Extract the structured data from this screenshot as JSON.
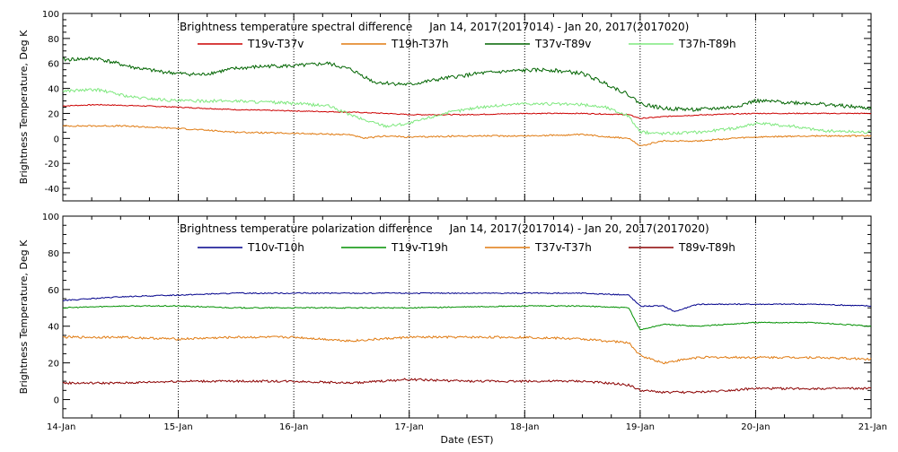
{
  "shared": {
    "xlabel": "Date (EST)",
    "x_ticks": [
      "14-Jan",
      "15-Jan",
      "16-Jan",
      "17-Jan",
      "18-Jan",
      "19-Jan",
      "20-Jan",
      "21-Jan"
    ],
    "xlim": [
      "14-Jan",
      "21-Jan"
    ],
    "grid": "dotted vertical lines at each day"
  },
  "chart_data": [
    {
      "type": "line",
      "title": "Brightness temperature spectral difference     Jan 14, 2017(2017014) - Jan 20, 2017(2017020)",
      "ylabel": "Brightness Temperature, Deg K",
      "ylim": [
        -50,
        100
      ],
      "y_ticks": [
        -40,
        -20,
        0,
        20,
        40,
        60,
        80,
        100
      ],
      "x_tick_labels_shown": false,
      "series": [
        {
          "name": "T19v-T37v",
          "color": "#cc0000",
          "noise": 0.4,
          "points": [
            [
              0,
              26
            ],
            [
              0.3,
              27
            ],
            [
              0.7,
              26
            ],
            [
              1,
              25
            ],
            [
              1.5,
              23
            ],
            [
              2,
              22
            ],
            [
              2.5,
              21
            ],
            [
              2.8,
              20
            ],
            [
              3,
              19
            ],
            [
              3.5,
              19
            ],
            [
              4,
              20
            ],
            [
              4.5,
              20
            ],
            [
              4.9,
              19
            ],
            [
              5,
              16
            ],
            [
              5.3,
              18
            ],
            [
              5.6,
              19
            ],
            [
              6,
              20
            ],
            [
              6.5,
              20
            ],
            [
              7,
              20
            ]
          ]
        },
        {
          "name": "T19h-T37h",
          "color": "#e07a10",
          "noise": 0.6,
          "points": [
            [
              0,
              10
            ],
            [
              0.5,
              10
            ],
            [
              1,
              8
            ],
            [
              1.5,
              5
            ],
            [
              2,
              4
            ],
            [
              2.5,
              3
            ],
            [
              2.6,
              0
            ],
            [
              2.8,
              2
            ],
            [
              3,
              1
            ],
            [
              3.5,
              2
            ],
            [
              4,
              2
            ],
            [
              4.5,
              3
            ],
            [
              4.9,
              0
            ],
            [
              5,
              -6
            ],
            [
              5.2,
              -2
            ],
            [
              5.5,
              -2
            ],
            [
              5.8,
              0
            ],
            [
              6,
              1
            ],
            [
              6.5,
              2
            ],
            [
              7,
              2
            ]
          ]
        },
        {
          "name": "T37v-T89v",
          "color": "#006400",
          "noise": 1.5,
          "points": [
            [
              0,
              63
            ],
            [
              0.3,
              64
            ],
            [
              0.6,
              57
            ],
            [
              0.8,
              54
            ],
            [
              1,
              52
            ],
            [
              1.2,
              51
            ],
            [
              1.5,
              56
            ],
            [
              1.8,
              58
            ],
            [
              2,
              58
            ],
            [
              2.3,
              60
            ],
            [
              2.5,
              55
            ],
            [
              2.7,
              45
            ],
            [
              3,
              43
            ],
            [
              3.3,
              48
            ],
            [
              3.6,
              52
            ],
            [
              3.9,
              54
            ],
            [
              4.2,
              55
            ],
            [
              4.5,
              52
            ],
            [
              4.7,
              44
            ],
            [
              4.9,
              35
            ],
            [
              5,
              28
            ],
            [
              5.2,
              24
            ],
            [
              5.5,
              23
            ],
            [
              5.8,
              25
            ],
            [
              6,
              30
            ],
            [
              6.5,
              28
            ],
            [
              7,
              24
            ]
          ]
        },
        {
          "name": "T37h-T89h",
          "color": "#7ee87e",
          "noise": 1.2,
          "points": [
            [
              0,
              38
            ],
            [
              0.3,
              39
            ],
            [
              0.6,
              33
            ],
            [
              1,
              30
            ],
            [
              1.5,
              30
            ],
            [
              2,
              28
            ],
            [
              2.3,
              26
            ],
            [
              2.6,
              15
            ],
            [
              2.8,
              10
            ],
            [
              3,
              12
            ],
            [
              3.3,
              20
            ],
            [
              3.6,
              25
            ],
            [
              4,
              28
            ],
            [
              4.5,
              27
            ],
            [
              4.7,
              25
            ],
            [
              4.9,
              18
            ],
            [
              5,
              5
            ],
            [
              5.2,
              4
            ],
            [
              5.5,
              5
            ],
            [
              5.8,
              8
            ],
            [
              6,
              12
            ],
            [
              6.3,
              10
            ],
            [
              6.6,
              6
            ],
            [
              7,
              5
            ]
          ]
        }
      ]
    },
    {
      "type": "line",
      "title": "Brightness temperature polarization difference     Jan 14, 2017(2017014) - Jan 20, 2017(2017020)",
      "ylabel": "Brightness Temperature, Deg K",
      "ylim": [
        -10,
        100
      ],
      "y_ticks": [
        0,
        20,
        40,
        60,
        80,
        100
      ],
      "x_tick_labels_shown": true,
      "series": [
        {
          "name": "T10v-T10h",
          "color": "#00008b",
          "noise": 0.3,
          "points": [
            [
              0,
              54
            ],
            [
              0.5,
              56
            ],
            [
              1,
              57
            ],
            [
              1.5,
              58
            ],
            [
              2,
              58
            ],
            [
              3,
              58
            ],
            [
              4,
              58
            ],
            [
              4.5,
              58
            ],
            [
              4.9,
              57
            ],
            [
              5,
              51
            ],
            [
              5.2,
              51
            ],
            [
              5.3,
              48
            ],
            [
              5.5,
              52
            ],
            [
              6,
              52
            ],
            [
              6.5,
              52
            ],
            [
              7,
              51
            ]
          ]
        },
        {
          "name": "T19v-T19h",
          "color": "#009000",
          "noise": 0.3,
          "points": [
            [
              0,
              50
            ],
            [
              0.5,
              51
            ],
            [
              1,
              51
            ],
            [
              1.5,
              50
            ],
            [
              2,
              50
            ],
            [
              3,
              50
            ],
            [
              4,
              51
            ],
            [
              4.5,
              51
            ],
            [
              4.9,
              50
            ],
            [
              5,
              38
            ],
            [
              5.2,
              41
            ],
            [
              5.5,
              40
            ],
            [
              6,
              42
            ],
            [
              6.5,
              42
            ],
            [
              7,
              40
            ]
          ]
        },
        {
          "name": "T37v-T37h",
          "color": "#e07a10",
          "noise": 0.6,
          "points": [
            [
              0,
              34
            ],
            [
              0.5,
              34
            ],
            [
              1,
              33
            ],
            [
              1.5,
              34
            ],
            [
              2,
              34
            ],
            [
              2.5,
              32
            ],
            [
              3,
              34
            ],
            [
              3.5,
              34
            ],
            [
              4,
              34
            ],
            [
              4.5,
              33
            ],
            [
              4.9,
              31
            ],
            [
              5,
              24
            ],
            [
              5.2,
              20
            ],
            [
              5.5,
              23
            ],
            [
              6,
              23
            ],
            [
              6.5,
              23
            ],
            [
              7,
              22
            ]
          ]
        },
        {
          "name": "T89v-T89h",
          "color": "#8b0000",
          "noise": 0.6,
          "points": [
            [
              0,
              9
            ],
            [
              0.5,
              9
            ],
            [
              1,
              10
            ],
            [
              1.5,
              10
            ],
            [
              2,
              10
            ],
            [
              2.5,
              9
            ],
            [
              3,
              11
            ],
            [
              3.5,
              10
            ],
            [
              4,
              10
            ],
            [
              4.5,
              10
            ],
            [
              4.9,
              8
            ],
            [
              5,
              5
            ],
            [
              5.2,
              4
            ],
            [
              5.5,
              4
            ],
            [
              6,
              6
            ],
            [
              6.5,
              6
            ],
            [
              7,
              6
            ]
          ]
        }
      ]
    }
  ]
}
